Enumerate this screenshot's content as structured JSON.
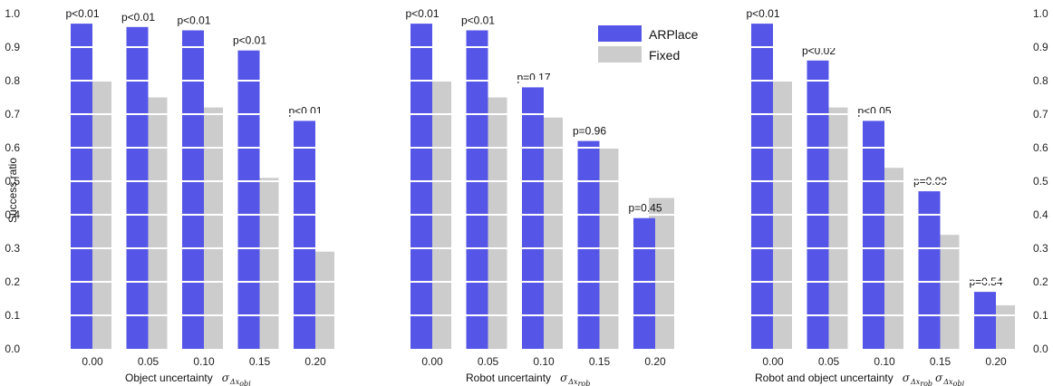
{
  "chart_data": {
    "type": "bar",
    "ylabel": "Success ratio",
    "ylim": [
      0,
      1
    ],
    "yticks": [
      "0.0",
      "0.1",
      "0.2",
      "0.3",
      "0.4",
      "0.5",
      "0.6",
      "0.7",
      "0.8",
      "0.9",
      "1.0"
    ],
    "colors": {
      "ARPlace": "#5555e8",
      "Fixed": "#cccccc"
    },
    "legend": {
      "placement": "top, middle panel",
      "entries": [
        "ARPlace",
        "Fixed"
      ]
    },
    "grid": "horizontal white lines over bars",
    "panels": [
      {
        "xlabel": "Object uncertainty",
        "xsymbol": {
          "base": "σ",
          "sub": "Δx",
          "subsub": "obj"
        },
        "categories": [
          "0.00",
          "0.05",
          "0.10",
          "0.15",
          "0.20"
        ],
        "series": [
          {
            "name": "ARPlace",
            "values": [
              0.97,
              0.96,
              0.95,
              0.89,
              0.68
            ]
          },
          {
            "name": "Fixed",
            "values": [
              0.8,
              0.75,
              0.72,
              0.51,
              0.29
            ]
          }
        ],
        "annotations": [
          "p<0.01",
          "p<0.01",
          "p<0.01",
          "p<0.01",
          "p<0.01"
        ]
      },
      {
        "xlabel": "Robot uncertainty",
        "xsymbol": {
          "base": "σ",
          "sub": "Δx",
          "subsub": "rob"
        },
        "categories": [
          "0.00",
          "0.05",
          "0.10",
          "0.15",
          "0.20"
        ],
        "series": [
          {
            "name": "ARPlace",
            "values": [
              0.97,
              0.95,
              0.78,
              0.62,
              0.39
            ]
          },
          {
            "name": "Fixed",
            "values": [
              0.8,
              0.75,
              0.69,
              0.6,
              0.45
            ]
          }
        ],
        "annotations": [
          "p<0.01",
          "p<0.01",
          "p=0.17",
          "p=0.96",
          "p=0.45"
        ]
      },
      {
        "xlabel": "Robot and object uncertainty",
        "xsymbol": {
          "base": "σ",
          "sub": "Δx",
          "subsub": "rob",
          "base2": "σ",
          "sub2": "Δx",
          "subsub2": "obj"
        },
        "categories": [
          "0.00",
          "0.05",
          "0.10",
          "0.15",
          "0.20"
        ],
        "series": [
          {
            "name": "ARPlace",
            "values": [
              0.97,
              0.86,
              0.68,
              0.47,
              0.17
            ]
          },
          {
            "name": "Fixed",
            "values": [
              0.8,
              0.72,
              0.54,
              0.34,
              0.13
            ]
          }
        ],
        "annotations": [
          "p<0.01",
          "p<0.02",
          "p<0.05",
          "p=0.09",
          "p=0.54"
        ]
      }
    ]
  }
}
